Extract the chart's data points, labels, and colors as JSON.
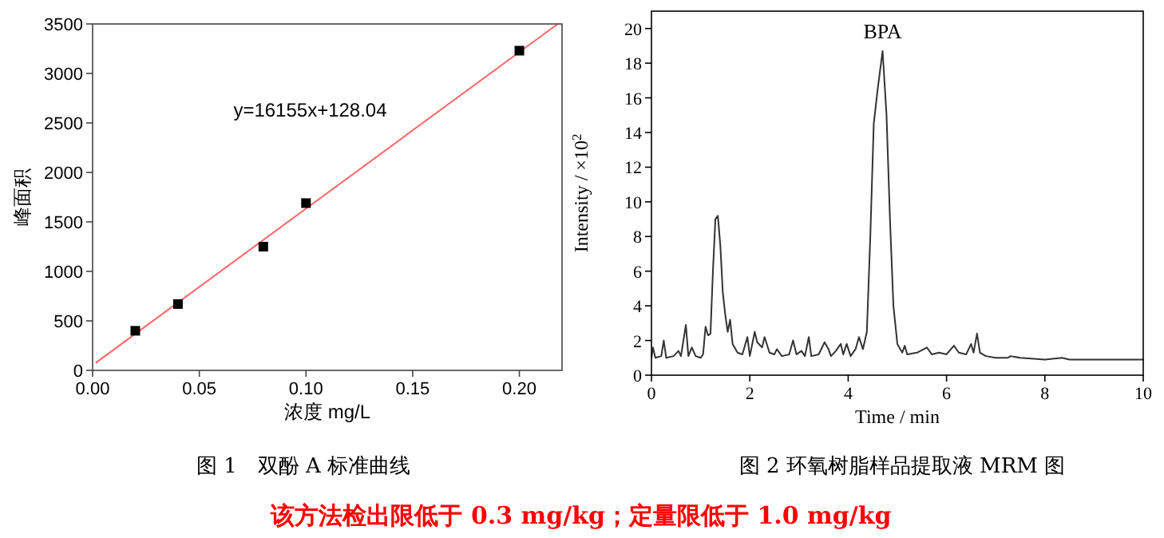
{
  "chart_data": [
    {
      "type": "scatter",
      "title": "图 1　双酚 A 标准曲线",
      "xlabel": "浓度 mg/L",
      "ylabel": "峰面积",
      "xlim": [
        0,
        0.22
      ],
      "ylim": [
        0,
        3500
      ],
      "xticks": [
        {
          "value": 0,
          "label": "0.00"
        },
        {
          "value": 0.05,
          "label": "0.05"
        },
        {
          "value": 0.1,
          "label": "0.10"
        },
        {
          "value": 0.15,
          "label": "0.15"
        },
        {
          "value": 0.2,
          "label": "0.20"
        }
      ],
      "yticks": [
        0,
        500,
        1000,
        1500,
        2000,
        2500,
        3000,
        3500
      ],
      "annotations": [
        "y=16155x+128.04"
      ],
      "series": [
        {
          "type": "line",
          "color": "#ff6666",
          "x": [
            0.0017,
            0.218
          ],
          "values": [
            80,
            3500
          ]
        },
        {
          "type": "scatter",
          "marker": "square",
          "color": "#000000",
          "x": [
            0.02,
            0.04,
            0.08,
            0.1,
            0.2
          ],
          "values": [
            400,
            670,
            1250,
            1690,
            3230
          ]
        }
      ]
    },
    {
      "type": "line",
      "title": "图 2 环氧树脂样品提取液 MRM 图",
      "xlabel": "Time / min",
      "ylabel": "Intensity / ×10$^{2}$",
      "xlim": [
        0,
        10
      ],
      "ylim": [
        0,
        21
      ],
      "xticks": [
        0,
        2,
        4,
        6,
        8,
        10
      ],
      "yticks": [
        0,
        2,
        4,
        6,
        8,
        10,
        12,
        14,
        16,
        18,
        20
      ],
      "annotations": [
        {
          "text": "BPA",
          "x": 4.7,
          "y": 18.7
        }
      ],
      "series": [
        {
          "color": "#333333",
          "x": [
            0,
            0.03,
            0.08,
            0.2,
            0.25,
            0.3,
            0.45,
            0.55,
            0.6,
            0.7,
            0.75,
            0.82,
            0.9,
            1.0,
            1.05,
            1.1,
            1.15,
            1.2,
            1.25,
            1.3,
            1.35,
            1.4,
            1.45,
            1.5,
            1.55,
            1.6,
            1.65,
            1.75,
            1.85,
            1.95,
            2.0,
            2.1,
            2.15,
            2.25,
            2.3,
            2.4,
            2.5,
            2.55,
            2.65,
            2.8,
            2.88,
            2.95,
            3.05,
            3.12,
            3.2,
            3.25,
            3.4,
            3.52,
            3.6,
            3.65,
            3.75,
            3.85,
            3.9,
            3.97,
            4.05,
            4.15,
            4.22,
            4.3,
            4.38,
            4.45,
            4.52,
            4.6,
            4.7,
            4.78,
            4.85,
            4.92,
            5.0,
            5.1,
            5.15,
            5.2,
            5.4,
            5.6,
            5.7,
            5.85,
            6.0,
            6.15,
            6.25,
            6.4,
            6.5,
            6.55,
            6.62,
            6.68,
            6.8,
            7.0,
            7.25,
            7.3,
            7.5,
            8.0,
            8.35,
            8.5,
            9.0,
            9.5,
            10
          ],
          "values": [
            1.0,
            1.6,
            1.0,
            1.1,
            2.0,
            1.0,
            1.1,
            1.4,
            1.1,
            2.9,
            1.1,
            1.6,
            1.1,
            1.0,
            1.2,
            2.8,
            2.3,
            2.4,
            6.0,
            9.0,
            9.2,
            7.5,
            4.8,
            3.5,
            2.5,
            3.2,
            1.8,
            1.3,
            1.2,
            2.2,
            1.1,
            2.5,
            1.9,
            1.6,
            2.2,
            1.3,
            1.2,
            1.5,
            1.1,
            1.2,
            2.0,
            1.2,
            1.4,
            1.1,
            2.2,
            1.1,
            1.2,
            1.9,
            1.5,
            1.1,
            1.4,
            1.8,
            1.2,
            1.8,
            1.1,
            1.5,
            2.2,
            1.5,
            2.5,
            8,
            14.5,
            16.5,
            18.7,
            15,
            9,
            4,
            1.8,
            1.3,
            1.7,
            1.2,
            1.3,
            1.6,
            1.2,
            1.3,
            1.2,
            1.7,
            1.3,
            1.2,
            1.8,
            1.3,
            2.4,
            1.3,
            1.1,
            1.0,
            1.0,
            1.1,
            1.0,
            0.9,
            1.0,
            0.9,
            0.9,
            0.9,
            0.9
          ]
        }
      ]
    },
    {
      "type": "other",
      "annotations": [
        "该方法检出限低于 0.3 mg/kg；定量限低于 1.0 mg/kg"
      ]
    }
  ]
}
